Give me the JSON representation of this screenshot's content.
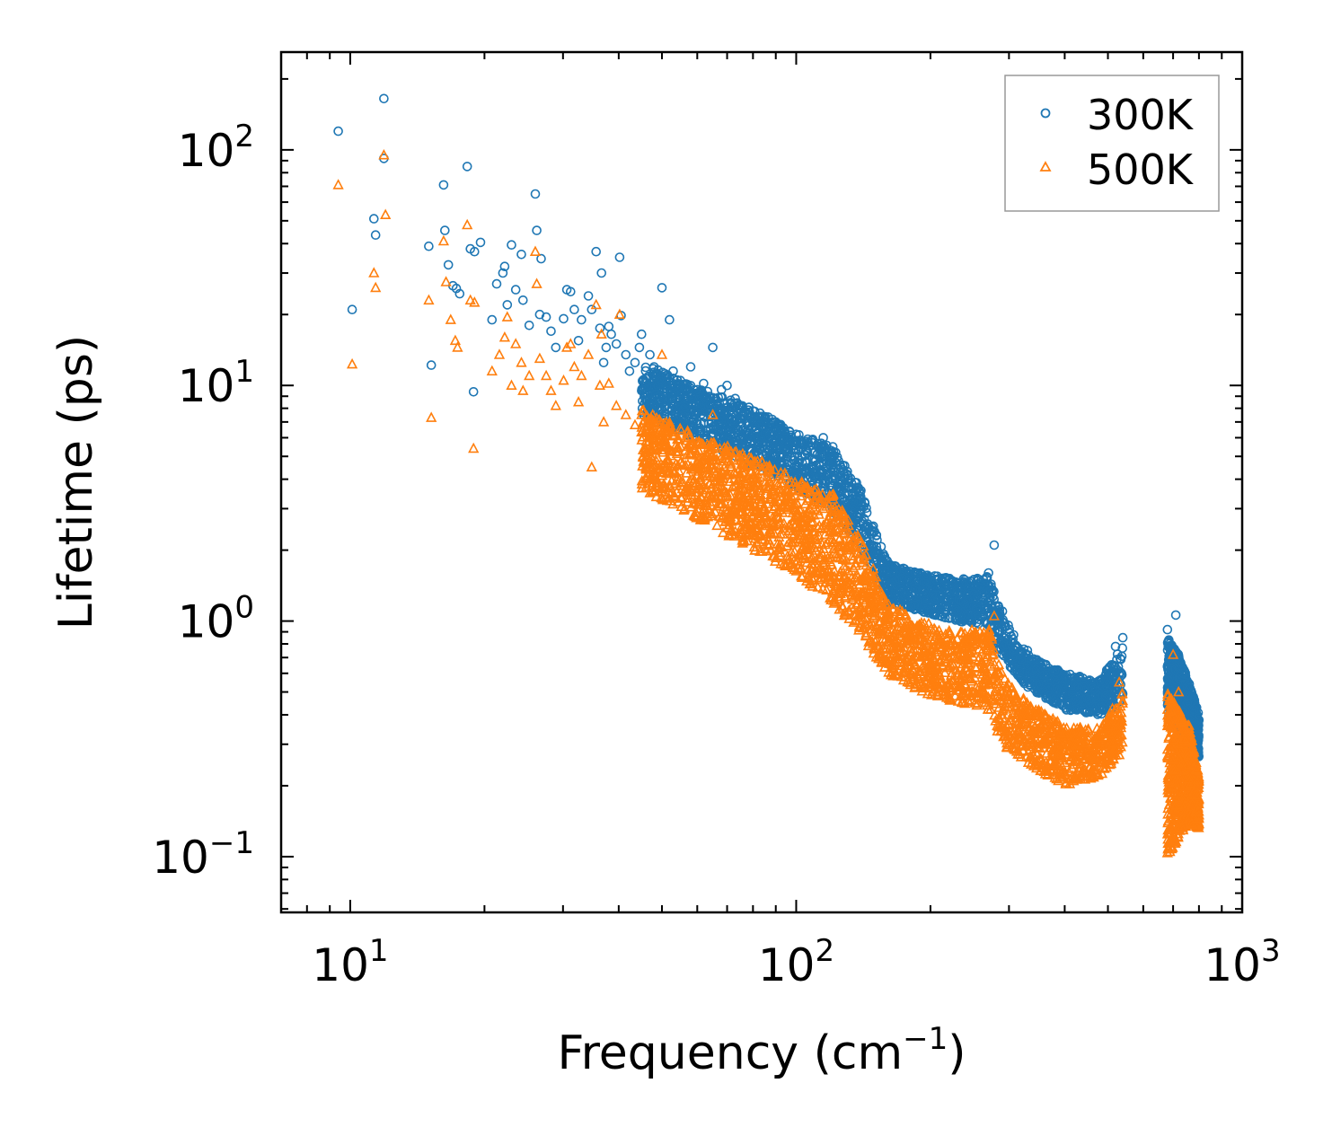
{
  "chart_data": {
    "type": "scatter",
    "title": "",
    "xlabel": "Frequency (cm",
    "xlabel_sup": "−1",
    "xlabel_tail": ")",
    "ylabel": "Lifetime (ps)",
    "xscale": "log",
    "yscale": "log",
    "xlim": [
      7.0,
      1000.0
    ],
    "ylim": [
      0.058,
      260.0
    ],
    "x_ticks": [
      {
        "value": 10,
        "base": "10",
        "exp": "1"
      },
      {
        "value": 100,
        "base": "10",
        "exp": "2"
      },
      {
        "value": 1000,
        "base": "10",
        "exp": "3"
      }
    ],
    "y_ticks": [
      {
        "value": 0.1,
        "base": "10",
        "exp": "−1"
      },
      {
        "value": 1,
        "base": "10",
        "exp": "0"
      },
      {
        "value": 10,
        "base": "10",
        "exp": "1"
      },
      {
        "value": 100,
        "base": "10",
        "exp": "2"
      }
    ],
    "legend": {
      "position": "top-right"
    },
    "series": [
      {
        "name": "300K",
        "color": "#1f77b4",
        "marker": "circle",
        "points": [
          [
            9.4,
            120
          ],
          [
            11.9,
            165
          ],
          [
            11.9,
            92
          ],
          [
            11.3,
            51
          ],
          [
            11.4,
            43.5
          ],
          [
            10.1,
            21
          ],
          [
            15.0,
            39
          ],
          [
            15.2,
            12.2
          ],
          [
            16.2,
            71
          ],
          [
            16.3,
            45.5
          ],
          [
            16.6,
            32.5
          ],
          [
            17.0,
            26.5
          ],
          [
            17.3,
            25.8
          ],
          [
            17.6,
            24.5
          ],
          [
            18.3,
            85
          ],
          [
            18.6,
            38
          ],
          [
            19.0,
            37
          ],
          [
            19.6,
            40.5
          ],
          [
            18.9,
            9.4
          ],
          [
            20.8,
            19
          ],
          [
            21.3,
            27
          ],
          [
            22.0,
            30
          ],
          [
            22.2,
            32
          ],
          [
            22.5,
            22
          ],
          [
            23.0,
            39.5
          ],
          [
            23.5,
            25.5
          ],
          [
            24.2,
            36
          ],
          [
            24.4,
            23
          ],
          [
            25.2,
            18
          ],
          [
            26.0,
            65
          ],
          [
            26.2,
            45.5
          ],
          [
            26.8,
            34.5
          ],
          [
            26.6,
            20
          ],
          [
            27.5,
            19.5
          ],
          [
            28.2,
            17
          ],
          [
            28.9,
            14.5
          ],
          [
            30.1,
            19.2
          ],
          [
            30.6,
            25.5
          ],
          [
            31.2,
            25
          ],
          [
            31.8,
            21
          ],
          [
            32.5,
            15.5
          ],
          [
            33.0,
            19
          ],
          [
            34.2,
            24
          ],
          [
            34.8,
            21
          ],
          [
            35.6,
            37
          ],
          [
            36.3,
            17.5
          ],
          [
            36.6,
            30
          ],
          [
            37.0,
            12.5
          ],
          [
            37.5,
            14.5
          ],
          [
            38.0,
            17.8
          ],
          [
            38.5,
            16.5
          ],
          [
            39.5,
            15
          ],
          [
            40.2,
            35
          ],
          [
            40.5,
            19.8
          ],
          [
            41.5,
            13.5
          ],
          [
            42.3,
            11.5
          ],
          [
            43.5,
            12.5
          ],
          [
            44.5,
            14.5
          ],
          [
            45.0,
            16.5
          ],
          [
            47.0,
            13.5
          ],
          [
            48.0,
            12
          ],
          [
            50.0,
            26
          ],
          [
            51.0,
            11
          ],
          [
            52.0,
            19
          ],
          [
            53.0,
            11.5
          ],
          [
            55.0,
            10.5
          ],
          [
            58.0,
            12
          ],
          [
            60.0,
            9.6
          ],
          [
            62.0,
            10.2
          ],
          [
            65.0,
            14.5
          ],
          [
            68.0,
            9.6
          ],
          [
            70.0,
            10
          ],
          [
            73.0,
            8.8
          ],
          [
            75.0,
            8.2
          ],
          [
            80.0,
            7.8
          ],
          [
            85.0,
            7.2
          ],
          [
            90.0,
            7
          ],
          [
            100.0,
            6.2
          ],
          [
            115.0,
            6
          ],
          [
            120.0,
            5.2
          ],
          [
            130.0,
            4.2
          ],
          [
            140.0,
            3.2
          ],
          [
            160.0,
            1.8
          ],
          [
            190.0,
            1.6
          ],
          [
            220.0,
            1.5
          ],
          [
            250.0,
            1.3
          ],
          [
            270.0,
            1.6
          ],
          [
            278.0,
            2.1
          ],
          [
            290.0,
            1.1
          ],
          [
            330.0,
            0.75
          ],
          [
            380.0,
            0.62
          ],
          [
            430.0,
            0.52
          ],
          [
            480.0,
            0.56
          ],
          [
            520.0,
            0.78
          ],
          [
            540.0,
            0.85
          ],
          [
            680.0,
            0.92
          ],
          [
            710.0,
            1.06
          ],
          [
            740.0,
            0.62
          ],
          [
            780.0,
            0.42
          ],
          [
            800.0,
            0.38
          ]
        ],
        "band_upper": [
          [
            45,
            12.5
          ],
          [
            60,
            9.8
          ],
          [
            80,
            8.0
          ],
          [
            100,
            6.3
          ],
          [
            120,
            5.6
          ],
          [
            140,
            3.6
          ],
          [
            160,
            1.75
          ],
          [
            190,
            1.6
          ],
          [
            230,
            1.5
          ],
          [
            270,
            1.55
          ],
          [
            290,
            1.05
          ],
          [
            330,
            0.72
          ],
          [
            400,
            0.6
          ],
          [
            480,
            0.56
          ],
          [
            540,
            0.8
          ]
        ],
        "band_lower": [
          [
            45,
            7.5
          ],
          [
            60,
            5.9
          ],
          [
            80,
            4.6
          ],
          [
            100,
            3.7
          ],
          [
            120,
            3.0
          ],
          [
            140,
            2.0
          ],
          [
            160,
            1.2
          ],
          [
            190,
            1.1
          ],
          [
            230,
            1.0
          ],
          [
            270,
            0.95
          ],
          [
            290,
            0.7
          ],
          [
            330,
            0.52
          ],
          [
            400,
            0.42
          ],
          [
            480,
            0.4
          ],
          [
            540,
            0.45
          ]
        ],
        "band2_upper": [
          [
            680,
            0.85
          ],
          [
            720,
            0.72
          ],
          [
            760,
            0.55
          ],
          [
            800,
            0.4
          ]
        ],
        "band2_lower": [
          [
            680,
            0.42
          ],
          [
            720,
            0.32
          ],
          [
            760,
            0.3
          ],
          [
            800,
            0.26
          ]
        ]
      },
      {
        "name": "500K",
        "color": "#ff7f0e",
        "marker": "triangle",
        "points": [
          [
            9.4,
            71
          ],
          [
            11.9,
            95
          ],
          [
            12.0,
            53
          ],
          [
            11.3,
            30
          ],
          [
            11.4,
            26
          ],
          [
            10.1,
            12.3
          ],
          [
            15.0,
            23
          ],
          [
            15.2,
            7.3
          ],
          [
            16.2,
            41
          ],
          [
            16.4,
            27.5
          ],
          [
            16.8,
            19
          ],
          [
            17.2,
            15.5
          ],
          [
            17.4,
            14.5
          ],
          [
            18.3,
            48
          ],
          [
            18.6,
            23
          ],
          [
            19.0,
            22.5
          ],
          [
            18.9,
            5.4
          ],
          [
            20.8,
            11.5
          ],
          [
            21.6,
            13.5
          ],
          [
            22.2,
            16
          ],
          [
            22.5,
            19.5
          ],
          [
            23.0,
            10
          ],
          [
            23.5,
            15
          ],
          [
            24.2,
            12.5
          ],
          [
            24.4,
            9.5
          ],
          [
            25.2,
            11
          ],
          [
            26.0,
            37
          ],
          [
            26.2,
            27
          ],
          [
            26.6,
            13
          ],
          [
            27.5,
            11
          ],
          [
            28.2,
            9.5
          ],
          [
            28.9,
            8.2
          ],
          [
            30.1,
            10.5
          ],
          [
            30.6,
            14.5
          ],
          [
            31.2,
            15
          ],
          [
            31.8,
            12
          ],
          [
            32.5,
            8.5
          ],
          [
            33.0,
            11
          ],
          [
            34.2,
            13.5
          ],
          [
            34.8,
            4.5
          ],
          [
            35.6,
            22
          ],
          [
            36.3,
            10
          ],
          [
            36.6,
            16.5
          ],
          [
            37.0,
            7
          ],
          [
            38.0,
            10.2
          ],
          [
            39.5,
            8.2
          ],
          [
            40.2,
            20
          ],
          [
            41.5,
            7.5
          ],
          [
            43.5,
            6.8
          ],
          [
            45.0,
            7.5
          ],
          [
            48.0,
            5.5
          ],
          [
            50.0,
            13.5
          ],
          [
            52.0,
            6.8
          ],
          [
            55.0,
            5.5
          ],
          [
            60.0,
            4.5
          ],
          [
            65.0,
            7.5
          ],
          [
            70.0,
            4.2
          ],
          [
            75.0,
            3.8
          ],
          [
            80.0,
            3.5
          ],
          [
            90.0,
            3.2
          ],
          [
            100.0,
            2.8
          ],
          [
            115.0,
            3.0
          ],
          [
            120.0,
            2.5
          ],
          [
            130.0,
            2.0
          ],
          [
            150.0,
            1.1
          ],
          [
            180.0,
            0.85
          ],
          [
            220.0,
            0.75
          ],
          [
            240.0,
            0.68
          ],
          [
            270.0,
            0.9
          ],
          [
            278.0,
            1.05
          ],
          [
            300.0,
            0.45
          ],
          [
            350.0,
            0.35
          ],
          [
            380.0,
            0.25
          ],
          [
            420.0,
            0.28
          ],
          [
            480.0,
            0.32
          ],
          [
            530.0,
            0.55
          ],
          [
            700.0,
            0.72
          ],
          [
            720.0,
            0.5
          ],
          [
            760.0,
            0.35
          ],
          [
            800.0,
            0.15
          ]
        ],
        "band_upper": [
          [
            45,
            8.0
          ],
          [
            60,
            6.2
          ],
          [
            80,
            5.0
          ],
          [
            100,
            4.0
          ],
          [
            120,
            3.6
          ],
          [
            140,
            2.2
          ],
          [
            160,
            1.2
          ],
          [
            190,
            1.0
          ],
          [
            230,
            0.9
          ],
          [
            270,
            0.95
          ],
          [
            290,
            0.6
          ],
          [
            330,
            0.45
          ],
          [
            400,
            0.36
          ],
          [
            480,
            0.35
          ],
          [
            540,
            0.5
          ]
        ],
        "band_lower": [
          [
            45,
            3.6
          ],
          [
            60,
            2.7
          ],
          [
            80,
            2.0
          ],
          [
            100,
            1.6
          ],
          [
            120,
            1.2
          ],
          [
            140,
            0.85
          ],
          [
            160,
            0.6
          ],
          [
            190,
            0.5
          ],
          [
            230,
            0.45
          ],
          [
            270,
            0.42
          ],
          [
            290,
            0.3
          ],
          [
            330,
            0.25
          ],
          [
            400,
            0.2
          ],
          [
            480,
            0.22
          ],
          [
            540,
            0.28
          ]
        ],
        "band2_upper": [
          [
            680,
            0.5
          ],
          [
            720,
            0.42
          ],
          [
            760,
            0.36
          ],
          [
            800,
            0.22
          ]
        ],
        "band2_lower": [
          [
            680,
            0.1
          ],
          [
            720,
            0.12
          ],
          [
            760,
            0.14
          ],
          [
            800,
            0.13
          ]
        ]
      }
    ]
  }
}
